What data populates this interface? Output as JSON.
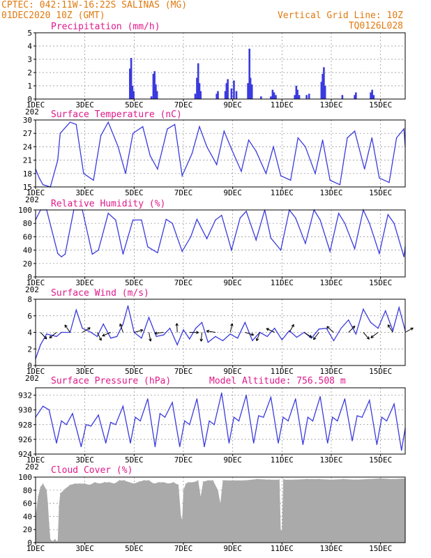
{
  "header": {
    "line1": "CPTEC:   042:11W-16:22S  SALINAS (MG)",
    "line2": "01DEC2020 10Z (GMT)",
    "grid_note": "Vertical Grid Line: 10Z",
    "code": "TQ0126L028",
    "text_color": "#e07a10"
  },
  "x_axis": {
    "labels": [
      "1DEC",
      "3DEC",
      "5DEC",
      "7DEC",
      "9DEC",
      "11DEC",
      "13DEC",
      "15DEC"
    ],
    "label_days": [
      0,
      2,
      4,
      6,
      8,
      10,
      12,
      14
    ],
    "cutoff_prefix": "202",
    "range_days": [
      0,
      15
    ]
  },
  "colors": {
    "title": "#e0198a",
    "series": "#3a3adf",
    "wind_arrow": "#000000",
    "cloud_fill": "#aaaaaa"
  },
  "panels": [
    {
      "id": "precip",
      "title": "Precipitation (mm/h)",
      "ylim": [
        0,
        5
      ],
      "yticks": [
        0,
        1,
        2,
        3,
        4,
        5
      ]
    },
    {
      "id": "temp",
      "title": "Surface Temperature (nC)",
      "ylim": [
        15,
        30
      ],
      "yticks": [
        15,
        18,
        21,
        24,
        27,
        30
      ]
    },
    {
      "id": "rh",
      "title": "Relative Humidity (%)",
      "ylim": [
        0,
        100
      ],
      "yticks": [
        0,
        20,
        40,
        60,
        80,
        100
      ]
    },
    {
      "id": "wind",
      "title": "Surface Wind (m/s)",
      "ylim": [
        0,
        8
      ],
      "yticks": [
        0,
        2,
        4,
        6,
        8
      ]
    },
    {
      "id": "pres",
      "title": "Surface Pressure (hPa)",
      "extra": "Model Altitude: 756.508 m",
      "ylim": [
        924,
        933
      ],
      "yticks": [
        924,
        926,
        928,
        930,
        932
      ]
    },
    {
      "id": "cloud",
      "title": "Cloud Cover (%)",
      "ylim": [
        0,
        100
      ],
      "yticks": [
        0,
        20,
        40,
        60,
        80,
        100
      ]
    }
  ],
  "chart_data": [
    {
      "type": "bar",
      "title": "Precipitation (mm/h)",
      "x_unit": "days since 01DEC2020 10Z",
      "ylim": [
        0,
        5
      ],
      "events": [
        {
          "x": 3.83,
          "v": 2.3
        },
        {
          "x": 3.88,
          "v": 3.1
        },
        {
          "x": 3.93,
          "v": 1.0
        },
        {
          "x": 3.98,
          "v": 0.6
        },
        {
          "x": 4.7,
          "v": 0.2
        },
        {
          "x": 4.78,
          "v": 1.9
        },
        {
          "x": 4.83,
          "v": 2.1
        },
        {
          "x": 4.88,
          "v": 1.1
        },
        {
          "x": 4.93,
          "v": 0.6
        },
        {
          "x": 6.48,
          "v": 0.4
        },
        {
          "x": 6.55,
          "v": 1.6
        },
        {
          "x": 6.6,
          "v": 2.7
        },
        {
          "x": 6.65,
          "v": 1.2
        },
        {
          "x": 6.7,
          "v": 0.6
        },
        {
          "x": 7.35,
          "v": 0.4
        },
        {
          "x": 7.4,
          "v": 0.6
        },
        {
          "x": 7.7,
          "v": 0.6
        },
        {
          "x": 7.75,
          "v": 1.2
        },
        {
          "x": 7.8,
          "v": 1.5
        },
        {
          "x": 7.95,
          "v": 0.8
        },
        {
          "x": 8.05,
          "v": 1.4
        },
        {
          "x": 8.15,
          "v": 0.6
        },
        {
          "x": 8.62,
          "v": 1.2
        },
        {
          "x": 8.68,
          "v": 3.8
        },
        {
          "x": 8.72,
          "v": 1.6
        },
        {
          "x": 8.78,
          "v": 1.1
        },
        {
          "x": 9.15,
          "v": 0.2
        },
        {
          "x": 9.55,
          "v": 0.2
        },
        {
          "x": 9.62,
          "v": 0.7
        },
        {
          "x": 9.68,
          "v": 0.5
        },
        {
          "x": 9.75,
          "v": 0.3
        },
        {
          "x": 10.52,
          "v": 0.3
        },
        {
          "x": 10.58,
          "v": 1.0
        },
        {
          "x": 10.63,
          "v": 0.7
        },
        {
          "x": 10.7,
          "v": 0.3
        },
        {
          "x": 11.0,
          "v": 0.3
        },
        {
          "x": 11.1,
          "v": 0.4
        },
        {
          "x": 11.6,
          "v": 1.3
        },
        {
          "x": 11.65,
          "v": 1.9
        },
        {
          "x": 11.7,
          "v": 2.4
        },
        {
          "x": 11.75,
          "v": 1.0
        },
        {
          "x": 12.45,
          "v": 0.3
        },
        {
          "x": 12.95,
          "v": 0.3
        },
        {
          "x": 13.0,
          "v": 0.5
        },
        {
          "x": 13.6,
          "v": 0.5
        },
        {
          "x": 13.66,
          "v": 0.7
        },
        {
          "x": 13.72,
          "v": 0.3
        }
      ]
    },
    {
      "type": "line",
      "title": "Surface Temperature (nC)",
      "x_unit": "days since 01DEC2020 10Z",
      "ylim": [
        15,
        30
      ],
      "x": [
        0,
        0.15,
        0.3,
        0.6,
        0.9,
        1.0,
        1.4,
        1.65,
        1.95,
        2.35,
        2.65,
        2.95,
        3.35,
        3.65,
        3.95,
        4.35,
        4.65,
        4.95,
        5.35,
        5.65,
        5.95,
        6.35,
        6.65,
        6.95,
        7.35,
        7.65,
        7.95,
        8.35,
        8.65,
        8.95,
        9.35,
        9.65,
        9.95,
        10.35,
        10.65,
        10.95,
        11.35,
        11.65,
        11.95,
        12.35,
        12.65,
        12.95,
        13.35,
        13.65,
        13.95,
        14.35,
        14.65,
        14.95,
        15.0
      ],
      "y": [
        19,
        17,
        15.5,
        15,
        21,
        27,
        29.5,
        29,
        18,
        16.5,
        26.5,
        29.5,
        24,
        18,
        27,
        28.5,
        22,
        19,
        28,
        29,
        17.5,
        22.5,
        28.5,
        24,
        20,
        27.5,
        23.5,
        18.5,
        25.5,
        23,
        18,
        24,
        17.5,
        16.5,
        26,
        24,
        18,
        25.5,
        16.5,
        15.5,
        26,
        27.5,
        19,
        26,
        17,
        16,
        26,
        28,
        24
      ]
    },
    {
      "type": "line",
      "title": "Relative Humidity (%)",
      "x_unit": "days since 01DEC2020 10Z",
      "ylim": [
        0,
        100
      ],
      "x": [
        0,
        0.2,
        0.45,
        0.9,
        1.05,
        1.2,
        1.55,
        1.9,
        2.3,
        2.55,
        2.95,
        3.25,
        3.55,
        3.95,
        4.3,
        4.55,
        4.95,
        5.3,
        5.55,
        5.95,
        6.3,
        6.55,
        6.95,
        7.3,
        7.55,
        7.95,
        8.3,
        8.55,
        8.95,
        9.3,
        9.55,
        9.95,
        10.3,
        10.55,
        10.95,
        11.3,
        11.55,
        11.95,
        12.3,
        12.55,
        12.95,
        13.3,
        13.55,
        13.95,
        14.3,
        14.55,
        14.95,
        15.0
      ],
      "y": [
        85,
        100,
        100,
        35,
        30,
        34,
        100,
        100,
        34,
        40,
        95,
        85,
        34,
        85,
        85,
        45,
        36,
        86,
        80,
        38,
        60,
        86,
        57,
        85,
        92,
        40,
        88,
        98,
        55,
        100,
        58,
        40,
        100,
        88,
        50,
        100,
        85,
        38,
        95,
        80,
        42,
        100,
        80,
        35,
        93,
        80,
        30,
        45
      ]
    },
    {
      "type": "line",
      "title": "Surface Wind (m/s)",
      "x_unit": "days since 01DEC2020 10Z",
      "ylim": [
        0,
        8
      ],
      "x": [
        0,
        0.2,
        0.45,
        0.85,
        1.05,
        1.4,
        1.65,
        1.9,
        2.25,
        2.5,
        2.75,
        3.05,
        3.3,
        3.55,
        3.75,
        4.0,
        4.3,
        4.6,
        4.9,
        5.2,
        5.45,
        5.75,
        6.0,
        6.25,
        6.5,
        6.75,
        7.0,
        7.3,
        7.6,
        7.9,
        8.2,
        8.5,
        8.8,
        9.1,
        9.4,
        9.7,
        10.0,
        10.3,
        10.6,
        10.9,
        11.2,
        11.5,
        11.8,
        12.1,
        12.4,
        12.7,
        13.0,
        13.3,
        13.6,
        13.9,
        14.2,
        14.5,
        14.75,
        15.0
      ],
      "y": [
        0.8,
        2.5,
        3.8,
        3.5,
        4.0,
        4.0,
        6.7,
        4.5,
        4.0,
        3.5,
        5.0,
        3.3,
        3.5,
        5.0,
        7.2,
        4.0,
        3.3,
        5.8,
        3.5,
        3.7,
        4.5,
        2.5,
        4.3,
        3.2,
        4.5,
        5.2,
        2.8,
        3.5,
        3.0,
        3.8,
        3.3,
        5.2,
        3.0,
        4.0,
        3.5,
        4.5,
        3.1,
        4.2,
        3.4,
        4.0,
        3.3,
        4.4,
        4.5,
        3.0,
        4.5,
        5.5,
        3.8,
        6.8,
        5.2,
        4.5,
        6.6,
        4.2,
        7.0,
        4.2
      ]
    },
    {
      "type": "line",
      "title": "Surface Pressure (hPa)",
      "x_unit": "days since 01DEC2020 10Z",
      "ylim": [
        924,
        933
      ],
      "x": [
        0,
        0.3,
        0.55,
        0.85,
        1.05,
        1.25,
        1.5,
        1.85,
        2.05,
        2.25,
        2.55,
        2.85,
        3.05,
        3.25,
        3.55,
        3.85,
        4.05,
        4.25,
        4.55,
        4.85,
        5.05,
        5.25,
        5.55,
        5.85,
        6.05,
        6.25,
        6.55,
        6.85,
        7.05,
        7.25,
        7.55,
        7.85,
        8.05,
        8.25,
        8.55,
        8.85,
        9.05,
        9.25,
        9.55,
        9.85,
        10.05,
        10.25,
        10.55,
        10.85,
        11.05,
        11.25,
        11.55,
        11.85,
        12.05,
        12.25,
        12.55,
        12.85,
        13.05,
        13.25,
        13.55,
        13.85,
        14.05,
        14.25,
        14.55,
        14.85,
        15.0
      ],
      "y": [
        929,
        930.5,
        930,
        925.5,
        928.5,
        928,
        929.5,
        925,
        928,
        927.8,
        929.3,
        925.5,
        928.3,
        928,
        930.5,
        925.5,
        929,
        928.5,
        931.5,
        925,
        929.5,
        929,
        931,
        925,
        928.5,
        928,
        931.5,
        925,
        928.5,
        928,
        932.3,
        925.5,
        929,
        928.5,
        932,
        925.5,
        929.2,
        929,
        931.7,
        925.5,
        929,
        928.5,
        931.5,
        925.3,
        929,
        928.5,
        931.8,
        925.5,
        929,
        928.5,
        931.5,
        925.8,
        929.2,
        929,
        931.3,
        925.3,
        929,
        928.5,
        930.8,
        924.5,
        927.5
      ]
    },
    {
      "type": "area",
      "title": "Cloud Cover (%)",
      "x_unit": "days since 01DEC2020 10Z",
      "ylim": [
        0,
        100
      ],
      "x": [
        0,
        0.1,
        0.2,
        0.3,
        0.45,
        0.5,
        0.55,
        0.6,
        0.65,
        0.7,
        0.75,
        0.8,
        0.85,
        0.9,
        0.95,
        1.0,
        1.2,
        1.4,
        1.6,
        1.8,
        2.0,
        2.2,
        2.4,
        2.6,
        2.8,
        3.0,
        3.2,
        3.4,
        3.6,
        3.8,
        4.0,
        4.2,
        4.4,
        4.6,
        4.8,
        5.0,
        5.2,
        5.4,
        5.6,
        5.8,
        5.9,
        5.95,
        6.0,
        6.1,
        6.2,
        6.4,
        6.6,
        6.7,
        6.8,
        7.0,
        7.2,
        7.4,
        7.5,
        7.6,
        7.7,
        8.0,
        8.5,
        9.0,
        9.5,
        9.9,
        9.95,
        10.0,
        10.05,
        10.1,
        10.5,
        11.0,
        11.5,
        12.0,
        12.5,
        13.0,
        13.5,
        14.0,
        14.5,
        15.0
      ],
      "y": [
        40,
        70,
        85,
        90,
        80,
        60,
        30,
        5,
        3,
        2,
        4,
        5,
        2,
        3,
        55,
        75,
        82,
        88,
        90,
        90,
        90,
        88,
        92,
        90,
        92,
        92,
        90,
        95,
        95,
        92,
        90,
        93,
        95,
        95,
        90,
        92,
        92,
        90,
        92,
        88,
        40,
        35,
        80,
        90,
        92,
        92,
        95,
        70,
        93,
        95,
        95,
        80,
        60,
        95,
        95,
        95,
        95,
        97,
        96,
        96,
        18,
        20,
        97,
        96,
        96,
        97,
        97,
        96,
        97,
        96,
        97,
        98,
        97,
        98
      ]
    }
  ]
}
